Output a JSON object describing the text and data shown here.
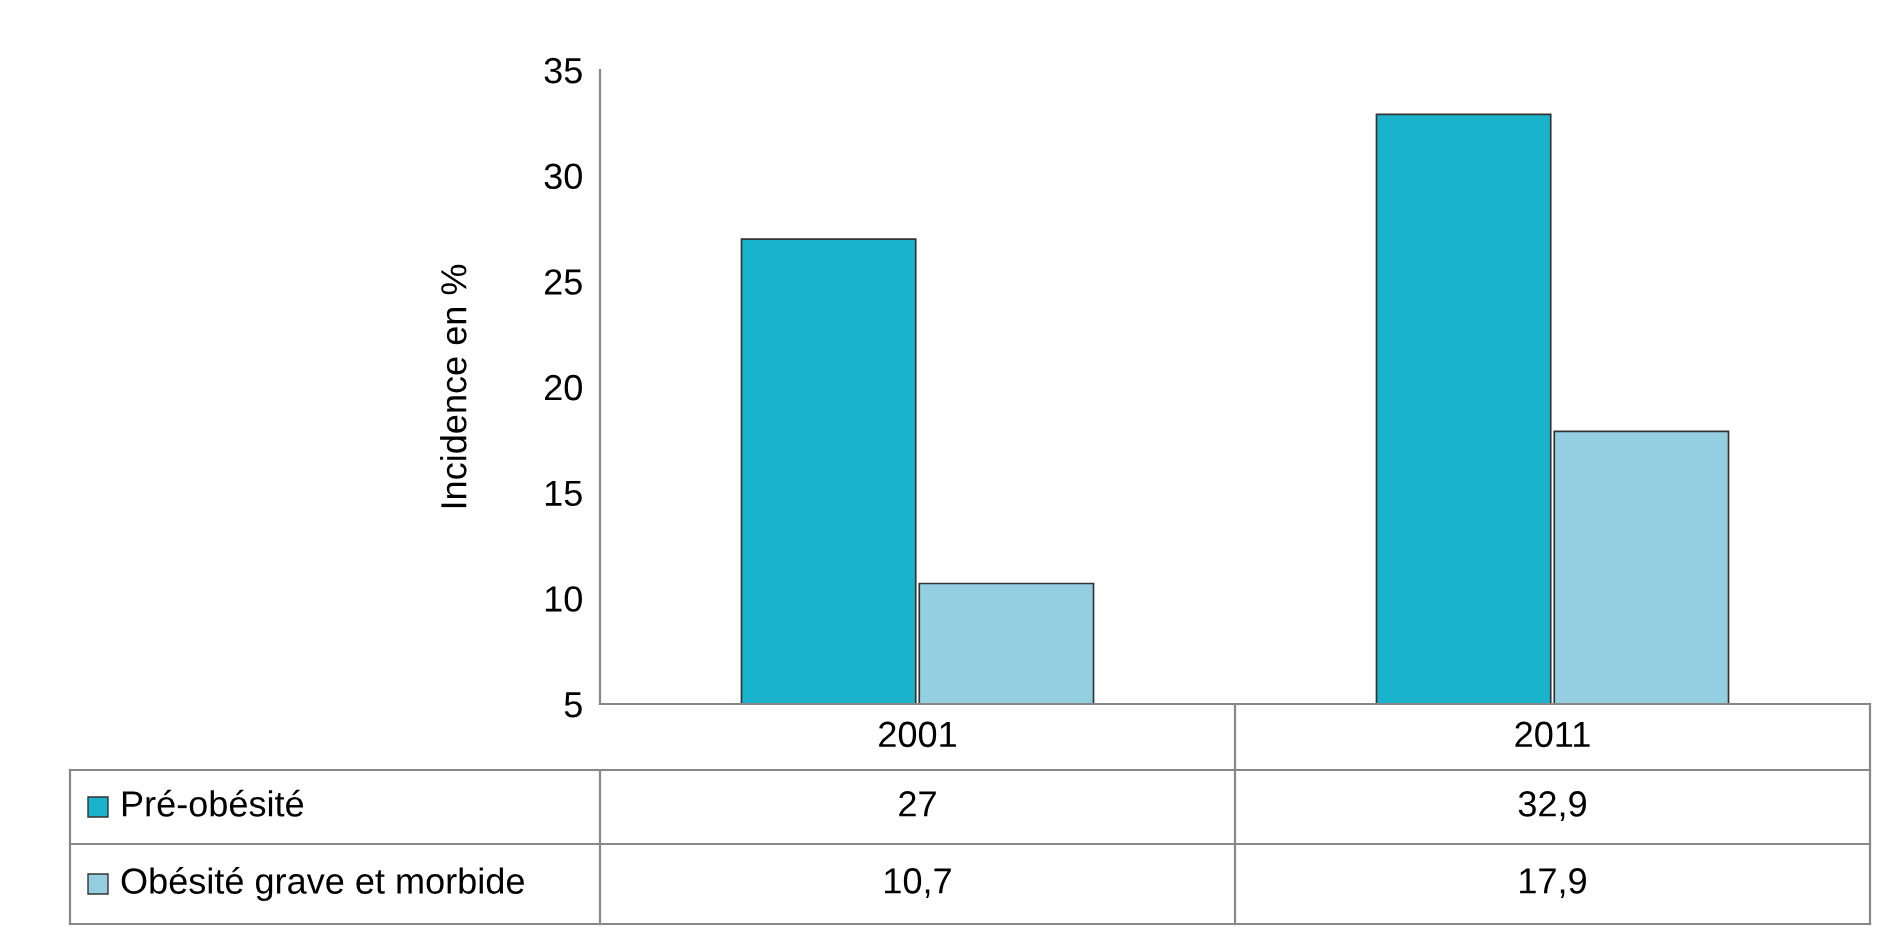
{
  "chart_data": {
    "type": "bar",
    "ylabel": "Incidence en %",
    "categories": [
      "2001",
      "2011"
    ],
    "series": [
      {
        "name": "Pré-obésité",
        "color": "#1ab3cc",
        "values": [
          27,
          32.9
        ],
        "value_labels": [
          "27",
          "32,9"
        ]
      },
      {
        "name": "Obésité grave et morbide",
        "color": "#93cfe0",
        "values": [
          10.7,
          17.9
        ],
        "value_labels": [
          "10,7",
          "17,9"
        ]
      }
    ],
    "ylim": [
      5,
      35
    ],
    "yticks": [
      5,
      10,
      15,
      20,
      25,
      30,
      35
    ],
    "grid": false,
    "legend": "bottom left"
  }
}
